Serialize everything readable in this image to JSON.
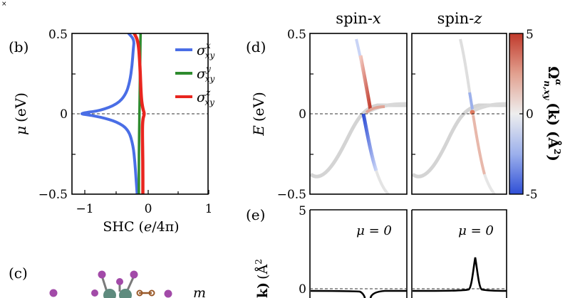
{
  "corner_mark": "×",
  "colors": {
    "sigma_x": "#4a6ee6",
    "sigma_y": "#2e8b2e",
    "sigma_z": "#e8261f",
    "band_gray": "#cfcfcf",
    "cmap_high": "#c0392b",
    "cmap_mid": "#eeeeee",
    "cmap_low": "#2f4fd6"
  },
  "panel_b": {
    "label": "(b)",
    "ylabel_symbol": "μ",
    "ylabel_unit": "(eV)",
    "xlabel_main": "SHC",
    "xlabel_unit_num": "e",
    "xlabel_unit_den": "/4π",
    "yticks": [
      "0.5",
      "0",
      "−0.5"
    ],
    "xticks": [
      "−1",
      "0",
      "1"
    ],
    "legend": [
      {
        "sym": "σ",
        "sub": "xy",
        "sup": "x",
        "color": "#4a6ee6"
      },
      {
        "sym": "σ",
        "sub": "xy",
        "sup": "y",
        "color": "#2e8b2e"
      },
      {
        "sym": "σ",
        "sub": "xy",
        "sup": "z",
        "color": "#e8261f"
      }
    ]
  },
  "panel_d": {
    "label": "(d)",
    "title_left_main": "spin-",
    "title_left_it": "x",
    "title_right_main": "spin-",
    "title_right_it": "z",
    "ylabel_symbol": "E",
    "ylabel_unit": "(eV)",
    "yticks": [
      "0.5",
      "0",
      "−0.5"
    ],
    "colorbar_ticks": [
      "5",
      "0",
      "-5"
    ],
    "colorbar_label_sym": "Ω",
    "colorbar_label_sup": "α",
    "colorbar_label_sub": "n,xy",
    "colorbar_label_arg": "(k) (Å",
    "colorbar_label_pow": "2",
    "colorbar_label_close": ")"
  },
  "panel_e": {
    "label": "(e)",
    "ytick_top": "5",
    "ytick_zero": "0",
    "mu_left": "μ = 0",
    "mu_right": "μ = 0",
    "ylabel_partial_arg": "k)",
    "ylabel_partial_unit": "(Å",
    "ylabel_partial_pow": "2"
  },
  "panel_c": {
    "label": "(c)",
    "m_label": "m"
  },
  "chart_data": [
    {
      "type": "line",
      "title": "",
      "xlabel": "SHC (e/4π)",
      "ylabel": "μ (eV)",
      "xlim": [
        -1.2,
        1.2
      ],
      "ylim": [
        -0.5,
        0.5
      ],
      "legend_position": "top-right",
      "x_ticks": [
        -1,
        0,
        1
      ],
      "y_ticks": [
        -0.5,
        0,
        0.5
      ],
      "series": [
        {
          "name": "σ^x_xy",
          "points": [
            [
              -0.05,
              -0.5
            ],
            [
              -0.07,
              -0.4
            ],
            [
              -0.09,
              -0.3
            ],
            [
              -0.12,
              -0.2
            ],
            [
              -0.2,
              -0.1
            ],
            [
              -0.4,
              -0.05
            ],
            [
              -0.7,
              -0.02
            ],
            [
              -0.95,
              -0.005
            ],
            [
              -1.05,
              0.0
            ],
            [
              -0.95,
              0.008
            ],
            [
              -0.7,
              0.02
            ],
            [
              -0.4,
              0.06
            ],
            [
              -0.25,
              0.12
            ],
            [
              -0.18,
              0.2
            ],
            [
              -0.14,
              0.3
            ],
            [
              -0.12,
              0.4
            ],
            [
              -0.1,
              0.46
            ],
            [
              -0.2,
              0.5
            ]
          ]
        },
        {
          "name": "σ^y_xy",
          "points": [
            [
              -0.02,
              -0.5
            ],
            [
              -0.02,
              -0.25
            ],
            [
              -0.01,
              0.0
            ],
            [
              0.0,
              0.25
            ],
            [
              0.01,
              0.5
            ]
          ]
        },
        {
          "name": "σ^z_xy",
          "points": [
            [
              0.05,
              -0.5
            ],
            [
              0.05,
              -0.3
            ],
            [
              0.04,
              -0.1
            ],
            [
              0.05,
              -0.03
            ],
            [
              0.08,
              0.0
            ],
            [
              0.05,
              0.03
            ],
            [
              0.02,
              0.1
            ],
            [
              0.0,
              0.3
            ],
            [
              -0.03,
              0.45
            ],
            [
              -0.1,
              0.5
            ]
          ]
        }
      ]
    }
  ]
}
